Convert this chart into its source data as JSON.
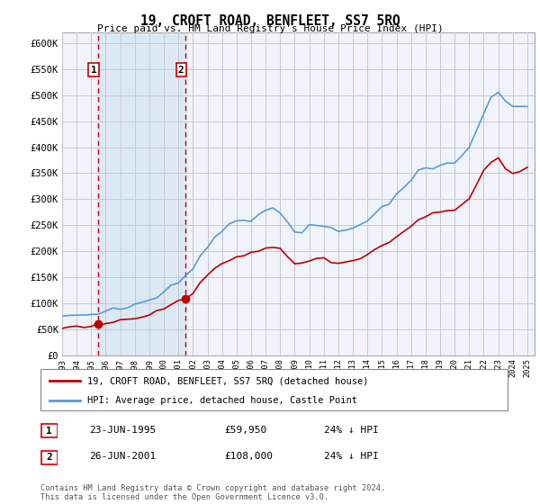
{
  "title": "19, CROFT ROAD, BENFLEET, SS7 5RQ",
  "subtitle": "Price paid vs. HM Land Registry's House Price Index (HPI)",
  "hpi_color": "#5b9bd5",
  "price_color": "#c00000",
  "background_color": "#ffffff",
  "plot_bg_color": "#f0f4fa",
  "highlight_color": "#dce9f5",
  "grid_color": "#c8c8d0",
  "sale1_date": 1995.47,
  "sale1_price": 59950,
  "sale2_date": 2001.48,
  "sale2_price": 108000,
  "sale1_label": "1",
  "sale2_label": "2",
  "legend_label_price": "19, CROFT ROAD, BENFLEET, SS7 5RQ (detached house)",
  "legend_label_hpi": "HPI: Average price, detached house, Castle Point",
  "table_row1": [
    "1",
    "23-JUN-1995",
    "£59,950",
    "24% ↓ HPI"
  ],
  "table_row2": [
    "2",
    "26-JUN-2001",
    "£108,000",
    "24% ↓ HPI"
  ],
  "footer": "Contains HM Land Registry data © Crown copyright and database right 2024.\nThis data is licensed under the Open Government Licence v3.0.",
  "ylim": [
    0,
    620000
  ],
  "yticks": [
    0,
    50000,
    100000,
    150000,
    200000,
    250000,
    300000,
    350000,
    400000,
    450000,
    500000,
    550000,
    600000
  ],
  "ytick_labels": [
    "£0",
    "£50K",
    "£100K",
    "£150K",
    "£200K",
    "£250K",
    "£300K",
    "£350K",
    "£400K",
    "£450K",
    "£500K",
    "£550K",
    "£600K"
  ],
  "xmin": 1993.0,
  "xmax": 2025.5
}
